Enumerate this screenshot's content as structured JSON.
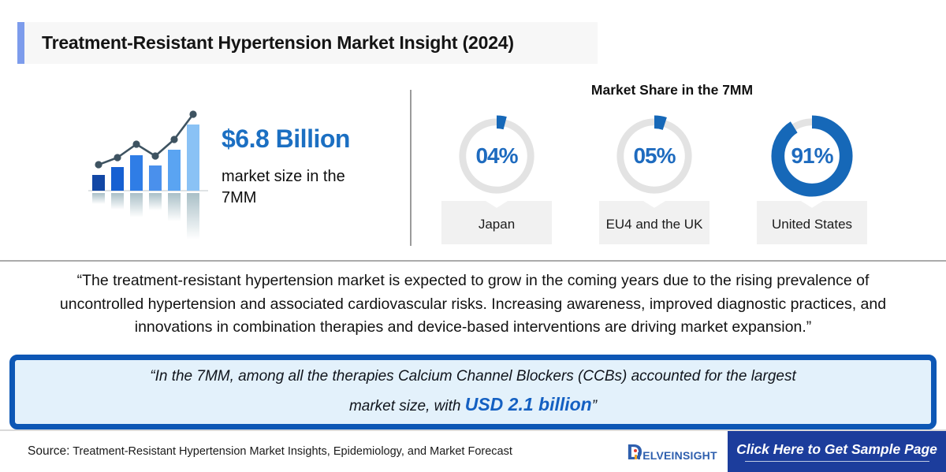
{
  "header": {
    "title": "Treatment-Resistant Hypertension Market Insight (2024)"
  },
  "market_size": {
    "value": "$6.8 Billion",
    "description": "market size in the 7MM"
  },
  "market_share": {
    "heading": "Market Share in the 7MM",
    "items": [
      {
        "label": "Japan",
        "pct": 4,
        "pct_label": "04%"
      },
      {
        "label": "EU4 and the UK",
        "pct": 5,
        "pct_label": "05%"
      },
      {
        "label": "United States",
        "pct": 91,
        "pct_label": "91%"
      }
    ]
  },
  "quote": "“The treatment-resistant hypertension market is expected to grow in the coming years due to the rising prevalence of uncontrolled hypertension and associated cardiovascular risks. Increasing awareness, improved diagnostic practices, and innovations in combination therapies and device-based interventions are driving market expansion.”",
  "callout": {
    "text_before": "“In the 7MM, among all the therapies Calcium Channel Blockers (CCBs) accounted for the largest market size, with ",
    "highlight": "USD 2.1 billion",
    "text_after": "”"
  },
  "footer": {
    "source_label": "Source:",
    "source_text": " Treatment-Resistant Hypertension Market Insights, Epidemiology, and Market Forecast",
    "logo_d": "D",
    "logo_rest": "ELVEINSIGHT",
    "button_label": "Click Here to Get Sample Page"
  },
  "icons": {
    "growth_icon": "bar-chart-with-trend-line",
    "logo_mark": "delveinsight-d-chart-mark",
    "tag_notch": "downward-notch-label-box"
  },
  "colors": {
    "title_accent": "#7d9cec",
    "title_bg": "#f7f7f7",
    "value_blue": "#1b6fc2",
    "donut_blue": "#1668b8",
    "donut_track": "#e3e3e3",
    "pct_text_blue": "#1e6bbf",
    "callout_border": "#0d57b5",
    "callout_bg": "#e3f1fb",
    "highlight_blue": "#1460c2",
    "button_bg": "#1c3d9c",
    "logo_blue": "#2e5fae"
  },
  "chart_data": [
    {
      "type": "pie",
      "title": "Market Share in the 7MM",
      "labels": [
        "Japan",
        "EU4 and the UK",
        "United States"
      ],
      "values": [
        4,
        5,
        91
      ],
      "unit": "%",
      "legend_position": "below-as-notched-tags",
      "style": "donut gauges, blue filled arc starting at 12 o'clock clockwise on gray track"
    },
    {
      "type": "bar",
      "title": "Market growth icon (decorative, unlabeled)",
      "values": [
        20,
        30,
        45,
        32,
        52,
        84
      ],
      "bar_colors": [
        "#1247a5",
        "#1660d2",
        "#2f7de6",
        "#4a90ec",
        "#5aa4f2",
        "#8ac2f5"
      ],
      "line_values": [
        33,
        42,
        59,
        44,
        65,
        97
      ],
      "line_color": "#3e5361",
      "note": "overlaid dot-line trend, mirrored reflection below baseline"
    }
  ]
}
